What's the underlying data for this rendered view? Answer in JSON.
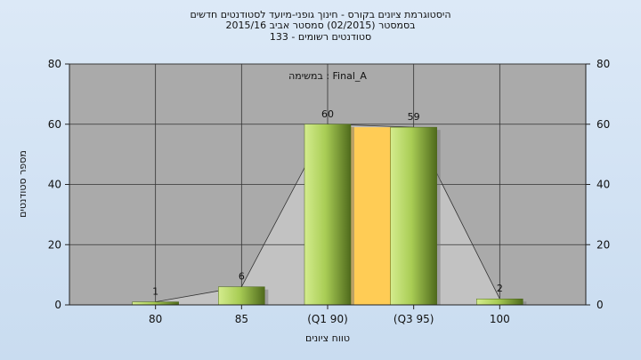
{
  "header": {
    "title_line1": "היסטוגרמת ציונים בקורס - חינוך גופני-מיועד לסטודנטים חדשים",
    "title_line2": "בסמסטר  (02/2015)  סמסטר אביב 2015/16",
    "title_line3": "סטודנטים רשומים - 133"
  },
  "chart_data": {
    "type": "bar",
    "annotation": "במשימה : Final_A",
    "categories": [
      "80",
      "85",
      "(Q1 90)",
      "(Q3 95)",
      "100"
    ],
    "values": [
      1,
      6,
      60,
      59,
      2
    ],
    "data_labels": [
      "1",
      "6",
      "60",
      "59",
      "2"
    ],
    "ylim": [
      0,
      80
    ],
    "yticks": [
      "0",
      "20",
      "40",
      "60",
      "80"
    ],
    "xlabel": "טווח ציונים",
    "ylabel": "מספר סטודנטים",
    "grid": true,
    "interquartile_band": {
      "from_category": "(Q1 90)",
      "to_category": "(Q3 95)"
    },
    "colors": {
      "plot_background": "#aaaaaa",
      "bar_light": "#d4ec8e",
      "bar_dark": "#4f6a1c",
      "interquartile_band": "#ffcc55",
      "distribution_shadow": "#c4c4c4"
    }
  }
}
